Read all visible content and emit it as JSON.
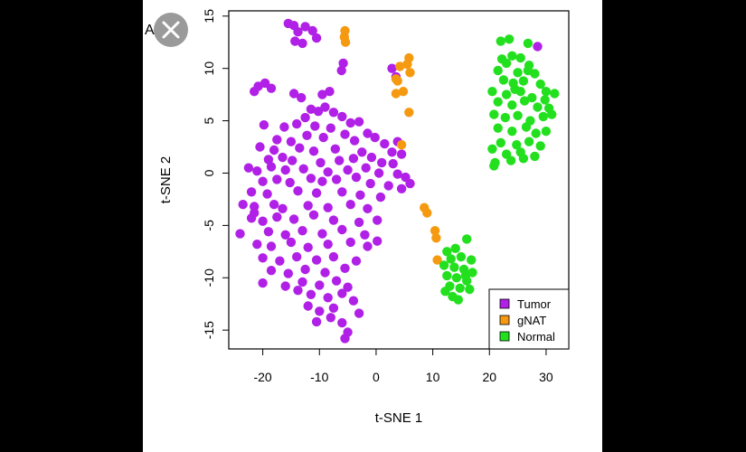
{
  "panel_label": "A",
  "chart_data": {
    "type": "scatter",
    "title": "",
    "xlabel": "t-SNE 1",
    "ylabel": "t-SNE 2",
    "xlim": [
      -26,
      34
    ],
    "ylim": [
      -16.8,
      15.5
    ],
    "x_ticks": [
      -20,
      -10,
      0,
      10,
      20,
      30
    ],
    "x_tick_labels": [
      "-20",
      "-10",
      "0",
      "10",
      "20",
      "30"
    ],
    "y_ticks": [
      -15,
      -10,
      -5,
      0,
      5,
      10,
      15
    ],
    "y_tick_labels": [
      "-15",
      "-10",
      "-5",
      "0",
      "5",
      "10",
      "15"
    ],
    "grid": false,
    "legend_position": "bottom-right",
    "series": [
      {
        "name": "Tumor",
        "color": "#B020E6",
        "points": [
          [
            -15.5,
            14.3
          ],
          [
            -14.5,
            14.1
          ],
          [
            -13.8,
            13.5
          ],
          [
            -12.5,
            14.0
          ],
          [
            -11.2,
            13.6
          ],
          [
            -14.3,
            12.6
          ],
          [
            -13.0,
            12.4
          ],
          [
            -10.5,
            12.9
          ],
          [
            -5.8,
            10.5
          ],
          [
            -6.1,
            9.8
          ],
          [
            -20.8,
            8.3
          ],
          [
            -19.6,
            8.6
          ],
          [
            -18.5,
            8.1
          ],
          [
            -21.5,
            7.8
          ],
          [
            -14.5,
            7.6
          ],
          [
            -13.2,
            7.2
          ],
          [
            -8.2,
            7.8
          ],
          [
            -9.5,
            7.5
          ],
          [
            -11.5,
            6.1
          ],
          [
            -10.2,
            5.9
          ],
          [
            -9.0,
            6.3
          ],
          [
            -7.5,
            5.8
          ],
          [
            -6.0,
            5.4
          ],
          [
            -12.5,
            5.3
          ],
          [
            -4.5,
            4.8
          ],
          [
            -3.0,
            4.9
          ],
          [
            -14.0,
            4.7
          ],
          [
            -16.2,
            4.4
          ],
          [
            -19.8,
            4.6
          ],
          [
            -10.8,
            4.5
          ],
          [
            -8.0,
            4.3
          ],
          [
            -1.5,
            3.8
          ],
          [
            -12.2,
            3.6
          ],
          [
            -9.3,
            3.4
          ],
          [
            -5.5,
            3.7
          ],
          [
            -3.8,
            3.1
          ],
          [
            -17.5,
            3.2
          ],
          [
            -15.0,
            3.0
          ],
          [
            -0.2,
            3.4
          ],
          [
            1.5,
            2.8
          ],
          [
            3.8,
            3.0
          ],
          [
            -20.5,
            2.5
          ],
          [
            -18.0,
            2.2
          ],
          [
            -13.5,
            2.4
          ],
          [
            -11.0,
            2.1
          ],
          [
            -7.2,
            2.3
          ],
          [
            -2.5,
            2.0
          ],
          [
            -0.8,
            1.5
          ],
          [
            2.8,
            2.0
          ],
          [
            4.5,
            1.8
          ],
          [
            -19.0,
            1.3
          ],
          [
            -16.5,
            1.5
          ],
          [
            -14.8,
            1.2
          ],
          [
            -9.8,
            1.0
          ],
          [
            -6.5,
            1.2
          ],
          [
            -4.0,
            1.4
          ],
          [
            1.0,
            1.0
          ],
          [
            3.0,
            0.9
          ],
          [
            -22.5,
            0.5
          ],
          [
            -21.0,
            0.2
          ],
          [
            -18.5,
            0.6
          ],
          [
            -16.0,
            0.3
          ],
          [
            -12.8,
            0.4
          ],
          [
            -8.5,
            0.1
          ],
          [
            -5.0,
            0.3
          ],
          [
            -1.8,
            0.5
          ],
          [
            0.5,
            0.0
          ],
          [
            3.8,
            -0.1
          ],
          [
            5.2,
            -0.4
          ],
          [
            6.0,
            -1.0
          ],
          [
            -20.0,
            -0.8
          ],
          [
            -17.5,
            -0.6
          ],
          [
            -15.2,
            -0.9
          ],
          [
            -11.5,
            -0.5
          ],
          [
            -9.5,
            -0.8
          ],
          [
            -7.0,
            -0.6
          ],
          [
            -3.5,
            -0.4
          ],
          [
            -1.0,
            -1.0
          ],
          [
            2.2,
            -1.2
          ],
          [
            4.5,
            -1.5
          ],
          [
            -22.0,
            -1.8
          ],
          [
            -19.2,
            -2.0
          ],
          [
            -13.8,
            -1.7
          ],
          [
            -10.5,
            -1.9
          ],
          [
            -6.0,
            -1.8
          ],
          [
            -2.8,
            -2.1
          ],
          [
            0.8,
            -2.3
          ],
          [
            -23.5,
            -3.0
          ],
          [
            -21.5,
            -3.2
          ],
          [
            -18.0,
            -3.0
          ],
          [
            -16.5,
            -3.4
          ],
          [
            -12.0,
            -3.1
          ],
          [
            -8.5,
            -3.3
          ],
          [
            -4.5,
            -3.0
          ],
          [
            -1.5,
            -3.4
          ],
          [
            -22.0,
            -4.3
          ],
          [
            -20.0,
            -4.6
          ],
          [
            -17.5,
            -4.2
          ],
          [
            -14.5,
            -4.4
          ],
          [
            -11.0,
            -4.0
          ],
          [
            -7.5,
            -4.5
          ],
          [
            -3.0,
            -4.7
          ],
          [
            0.2,
            -4.5
          ],
          [
            -24.0,
            -5.8
          ],
          [
            -19.0,
            -5.6
          ],
          [
            -16.0,
            -5.9
          ],
          [
            -13.0,
            -5.5
          ],
          [
            -9.5,
            -5.8
          ],
          [
            -6.0,
            -5.4
          ],
          [
            -2.0,
            -5.9
          ],
          [
            -21.0,
            -6.8
          ],
          [
            -18.5,
            -7.0
          ],
          [
            -15.0,
            -6.6
          ],
          [
            -12.0,
            -7.1
          ],
          [
            -8.5,
            -6.8
          ],
          [
            -4.5,
            -6.6
          ],
          [
            -1.5,
            -7.0
          ],
          [
            0.2,
            -6.5
          ],
          [
            -20.0,
            -8.1
          ],
          [
            -17.0,
            -8.4
          ],
          [
            -14.0,
            -8.0
          ],
          [
            -10.5,
            -8.3
          ],
          [
            -7.5,
            -8.0
          ],
          [
            -3.5,
            -8.4
          ],
          [
            -18.5,
            -9.3
          ],
          [
            -15.5,
            -9.6
          ],
          [
            -12.5,
            -9.2
          ],
          [
            -9.0,
            -9.5
          ],
          [
            -5.5,
            -9.1
          ],
          [
            -20.0,
            -10.5
          ],
          [
            -16.0,
            -10.8
          ],
          [
            -13.0,
            -10.4
          ],
          [
            -10.0,
            -10.7
          ],
          [
            -7.0,
            -10.3
          ],
          [
            -5.0,
            -10.9
          ],
          [
            -11.5,
            -11.6
          ],
          [
            -8.5,
            -11.9
          ],
          [
            -6.0,
            -11.5
          ],
          [
            -4.0,
            -12.2
          ],
          [
            -12.0,
            -12.7
          ],
          [
            -10.0,
            -13.2
          ],
          [
            -7.5,
            -12.9
          ],
          [
            -3.0,
            -13.4
          ],
          [
            -10.5,
            -14.2
          ],
          [
            -6.0,
            -14.3
          ],
          [
            -5.0,
            -15.2
          ],
          [
            -5.5,
            -15.8
          ],
          [
            -13.8,
            -11.2
          ],
          [
            -8.0,
            -13.8
          ],
          [
            -21.5,
            -3.8
          ],
          [
            2.8,
            10.0
          ],
          [
            3.5,
            9.2
          ],
          [
            28.5,
            12.1
          ]
        ]
      },
      {
        "name": "gNAT",
        "color": "#F59A10",
        "points": [
          [
            -5.5,
            13.6
          ],
          [
            -5.6,
            13.0
          ],
          [
            -5.4,
            12.5
          ],
          [
            5.8,
            11.0
          ],
          [
            5.5,
            10.4
          ],
          [
            4.2,
            10.2
          ],
          [
            6.0,
            9.6
          ],
          [
            3.5,
            9.0
          ],
          [
            3.8,
            8.8
          ],
          [
            4.8,
            7.8
          ],
          [
            3.5,
            7.6
          ],
          [
            5.8,
            5.8
          ],
          [
            4.5,
            2.7
          ],
          [
            8.5,
            -3.3
          ],
          [
            9.0,
            -3.8
          ],
          [
            10.4,
            -5.5
          ],
          [
            10.6,
            -6.2
          ],
          [
            10.8,
            -8.3
          ]
        ]
      },
      {
        "name": "Normal",
        "color": "#22E01E",
        "points": [
          [
            22.0,
            12.6
          ],
          [
            23.5,
            12.8
          ],
          [
            26.8,
            12.4
          ],
          [
            24.0,
            11.2
          ],
          [
            25.5,
            11.0
          ],
          [
            23.0,
            10.5
          ],
          [
            27.0,
            10.3
          ],
          [
            21.5,
            9.8
          ],
          [
            25.0,
            9.6
          ],
          [
            28.0,
            9.5
          ],
          [
            22.5,
            8.9
          ],
          [
            24.2,
            8.6
          ],
          [
            26.0,
            8.8
          ],
          [
            29.0,
            8.5
          ],
          [
            20.5,
            7.8
          ],
          [
            23.0,
            7.5
          ],
          [
            25.5,
            7.8
          ],
          [
            27.5,
            7.2
          ],
          [
            30.0,
            7.8
          ],
          [
            31.5,
            7.6
          ],
          [
            21.5,
            6.8
          ],
          [
            24.0,
            6.5
          ],
          [
            26.2,
            6.9
          ],
          [
            28.5,
            6.3
          ],
          [
            30.5,
            6.2
          ],
          [
            20.8,
            5.6
          ],
          [
            22.8,
            5.3
          ],
          [
            25.0,
            5.5
          ],
          [
            27.2,
            5.0
          ],
          [
            29.5,
            5.4
          ],
          [
            31.0,
            5.6
          ],
          [
            21.5,
            4.3
          ],
          [
            24.0,
            4.0
          ],
          [
            26.5,
            4.4
          ],
          [
            28.2,
            3.8
          ],
          [
            30.0,
            4.0
          ],
          [
            22.0,
            2.9
          ],
          [
            24.8,
            2.7
          ],
          [
            27.0,
            3.0
          ],
          [
            29.0,
            2.6
          ],
          [
            20.5,
            2.3
          ],
          [
            23.0,
            1.8
          ],
          [
            25.5,
            2.0
          ],
          [
            28.0,
            1.6
          ],
          [
            21.0,
            1.0
          ],
          [
            23.8,
            1.2
          ],
          [
            26.0,
            1.4
          ],
          [
            20.8,
            0.7
          ],
          [
            24.5,
            8.0
          ],
          [
            26.8,
            9.8
          ],
          [
            22.2,
            10.9
          ],
          [
            29.8,
            7.0
          ],
          [
            12.5,
            -7.5
          ],
          [
            14.0,
            -7.2
          ],
          [
            16.0,
            -6.3
          ],
          [
            13.2,
            -8.2
          ],
          [
            15.0,
            -8.0
          ],
          [
            16.8,
            -8.3
          ],
          [
            12.0,
            -8.8
          ],
          [
            13.8,
            -9.0
          ],
          [
            15.5,
            -9.2
          ],
          [
            17.0,
            -9.5
          ],
          [
            12.5,
            -9.8
          ],
          [
            14.2,
            -10.0
          ],
          [
            16.0,
            -10.3
          ],
          [
            13.0,
            -10.8
          ],
          [
            14.8,
            -11.0
          ],
          [
            16.5,
            -11.1
          ],
          [
            12.2,
            -11.3
          ],
          [
            13.5,
            -11.8
          ],
          [
            14.5,
            -12.1
          ],
          [
            15.8,
            -9.8
          ]
        ]
      }
    ]
  }
}
